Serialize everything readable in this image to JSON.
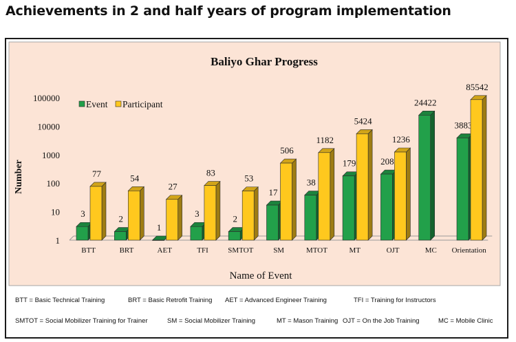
{
  "page": {
    "heading": "Achievements in 2 and half years of program implementation"
  },
  "chart_data": {
    "type": "bar",
    "title": "Baliyo Ghar Progress",
    "xlabel": "Name of Event",
    "ylabel": "Number",
    "yscale": "log",
    "ylim": [
      1,
      100000
    ],
    "yticks": [
      "1",
      "10",
      "100",
      "1000",
      "10000",
      "100000"
    ],
    "grid": false,
    "legend": "top-left",
    "categories": [
      "BTT",
      "BRT",
      "AET",
      "TFI",
      "SMTOT",
      "SM",
      "MTOT",
      "MT",
      "OJT",
      "MC",
      "Orientation"
    ],
    "series": [
      {
        "name": "Event",
        "color": "#22a04a",
        "values": [
          3,
          2,
          1,
          3,
          2,
          17,
          38,
          179,
          208,
          24422,
          3883
        ],
        "labels": [
          "3",
          "2",
          "1",
          "3",
          "2",
          "17",
          "38",
          "179",
          "208",
          "24422",
          "3883"
        ]
      },
      {
        "name": "Participant",
        "color": "#ffc81e",
        "values": [
          77,
          54,
          27,
          83,
          53,
          506,
          1182,
          5424,
          1236,
          null,
          85542
        ],
        "labels": [
          "77",
          "54",
          "27",
          "83",
          "53",
          "506",
          "1182",
          "5424",
          "1236",
          null,
          "85542"
        ]
      }
    ]
  },
  "footnotes": [
    "BTT = Basic Technical Training",
    "BRT = Basic Retrofit Training",
    "AET = Advanced Engineer Training",
    "TFI = Training for Instructors",
    "SMTOT = Social Mobilizer Training for Trainer",
    "SM = Social Mobilizer Training",
    "MT = Mason Training",
    "OJT = On the Job Training",
    "MC = Mobile Clinic"
  ],
  "colors": {
    "panel": "#fce4d6",
    "event": "#22a04a",
    "participant": "#ffc81e"
  }
}
